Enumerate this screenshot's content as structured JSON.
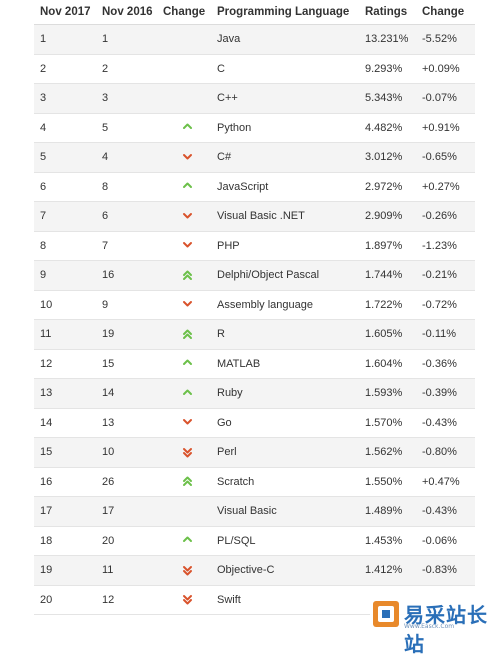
{
  "headers": [
    "Nov 2017",
    "Nov 2016",
    "Change",
    "Programming Language",
    "Ratings",
    "Change"
  ],
  "rows": [
    {
      "nov2017": "1",
      "nov2016": "1",
      "change": "",
      "language": "Java",
      "rating": "13.231%",
      "delta": "-5.52%"
    },
    {
      "nov2017": "2",
      "nov2016": "2",
      "change": "",
      "language": "C",
      "rating": "9.293%",
      "delta": "+0.09%"
    },
    {
      "nov2017": "3",
      "nov2016": "3",
      "change": "",
      "language": "C++",
      "rating": "5.343%",
      "delta": "-0.07%"
    },
    {
      "nov2017": "4",
      "nov2016": "5",
      "change": "up",
      "language": "Python",
      "rating": "4.482%",
      "delta": "+0.91%"
    },
    {
      "nov2017": "5",
      "nov2016": "4",
      "change": "down",
      "language": "C#",
      "rating": "3.012%",
      "delta": "-0.65%"
    },
    {
      "nov2017": "6",
      "nov2016": "8",
      "change": "up",
      "language": "JavaScript",
      "rating": "2.972%",
      "delta": "+0.27%"
    },
    {
      "nov2017": "7",
      "nov2016": "6",
      "change": "down",
      "language": "Visual Basic .NET",
      "rating": "2.909%",
      "delta": "-0.26%"
    },
    {
      "nov2017": "8",
      "nov2016": "7",
      "change": "down",
      "language": "PHP",
      "rating": "1.897%",
      "delta": "-1.23%"
    },
    {
      "nov2017": "9",
      "nov2016": "16",
      "change": "up2",
      "language": "Delphi/Object Pascal",
      "rating": "1.744%",
      "delta": "-0.21%"
    },
    {
      "nov2017": "10",
      "nov2016": "9",
      "change": "down",
      "language": "Assembly language",
      "rating": "1.722%",
      "delta": "-0.72%"
    },
    {
      "nov2017": "11",
      "nov2016": "19",
      "change": "up2",
      "language": "R",
      "rating": "1.605%",
      "delta": "-0.11%"
    },
    {
      "nov2017": "12",
      "nov2016": "15",
      "change": "up",
      "language": "MATLAB",
      "rating": "1.604%",
      "delta": "-0.36%"
    },
    {
      "nov2017": "13",
      "nov2016": "14",
      "change": "up",
      "language": "Ruby",
      "rating": "1.593%",
      "delta": "-0.39%"
    },
    {
      "nov2017": "14",
      "nov2016": "13",
      "change": "down",
      "language": "Go",
      "rating": "1.570%",
      "delta": "-0.43%"
    },
    {
      "nov2017": "15",
      "nov2016": "10",
      "change": "down2",
      "language": "Perl",
      "rating": "1.562%",
      "delta": "-0.80%"
    },
    {
      "nov2017": "16",
      "nov2016": "26",
      "change": "up2",
      "language": "Scratch",
      "rating": "1.550%",
      "delta": "+0.47%"
    },
    {
      "nov2017": "17",
      "nov2016": "17",
      "change": "",
      "language": "Visual Basic",
      "rating": "1.489%",
      "delta": "-0.43%"
    },
    {
      "nov2017": "18",
      "nov2016": "20",
      "change": "up",
      "language": "PL/SQL",
      "rating": "1.453%",
      "delta": "-0.06%"
    },
    {
      "nov2017": "19",
      "nov2016": "11",
      "change": "down2",
      "language": "Objective-C",
      "rating": "1.412%",
      "delta": "-0.83%"
    },
    {
      "nov2017": "20",
      "nov2016": "12",
      "change": "down2",
      "language": "Swift",
      "rating": "",
      "delta": ""
    }
  ],
  "colors": {
    "up": "#6cc04a",
    "down": "#d9532c"
  },
  "icons": {
    "up": "chevron-up-icon",
    "up2": "double-chevron-up-icon",
    "down": "chevron-down-icon",
    "down2": "double-chevron-down-icon"
  },
  "watermark": {
    "text": "易采站长站",
    "subtext": "Www.Easck.Com"
  }
}
